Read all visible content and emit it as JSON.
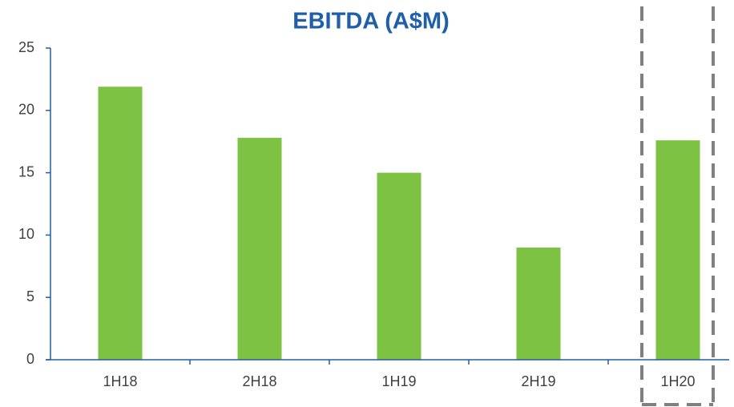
{
  "chart_data": {
    "type": "bar",
    "title": "EBITDA (A$M)",
    "categories": [
      "1H18",
      "2H18",
      "1H19",
      "2H19",
      "1H20"
    ],
    "values": [
      21.9,
      17.8,
      15.0,
      9.0,
      17.6
    ],
    "color": "#7dc242",
    "ylim": [
      0,
      25
    ],
    "yticks": [
      0,
      5,
      10,
      15,
      20,
      25
    ],
    "grid": false
  }
}
